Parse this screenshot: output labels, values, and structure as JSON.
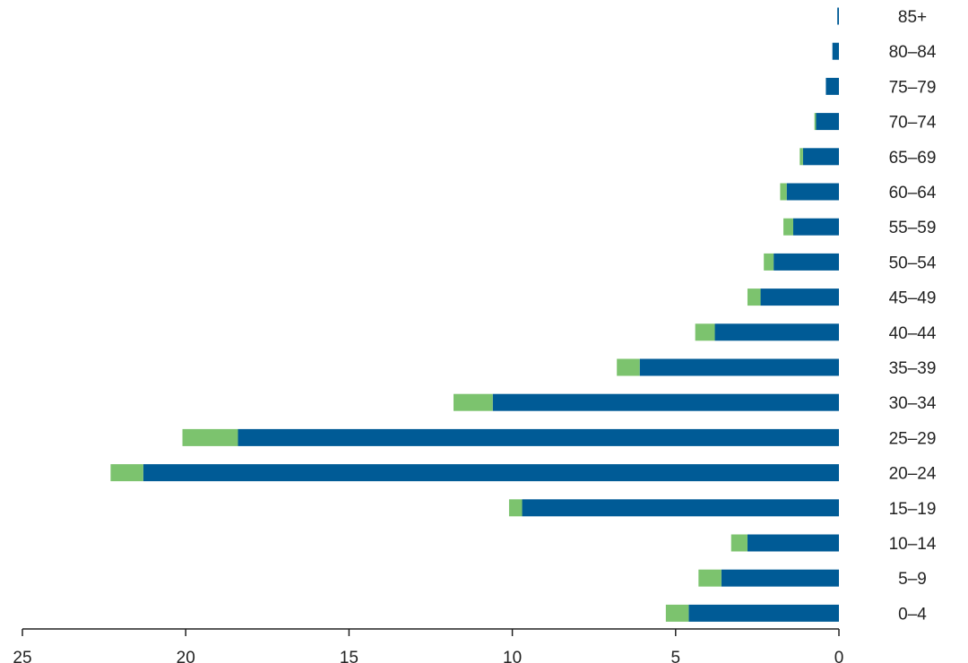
{
  "chart_data": {
    "type": "bar",
    "orientation": "horizontal",
    "stacked": true,
    "x_direction": "reversed",
    "title": "",
    "xlabel": "",
    "ylabel": "",
    "categories": [
      "0–4",
      "5–9",
      "10–14",
      "15–19",
      "20–24",
      "25–29",
      "30–34",
      "35–39",
      "40–44",
      "45–49",
      "50–54",
      "55–59",
      "60–64",
      "65–69",
      "70–74",
      "75–79",
      "80–84",
      "85+"
    ],
    "series": [
      {
        "color": "#005b96",
        "values": [
          4.6,
          3.6,
          2.8,
          9.7,
          21.3,
          18.4,
          10.6,
          6.1,
          3.8,
          2.4,
          2.0,
          1.4,
          1.6,
          1.1,
          0.7,
          0.4,
          0.2,
          0.05
        ]
      },
      {
        "color": "#7cc36e",
        "values": [
          0.7,
          0.7,
          0.5,
          0.4,
          1.0,
          1.7,
          1.2,
          0.7,
          0.6,
          0.4,
          0.3,
          0.3,
          0.2,
          0.1,
          0.05,
          0.0,
          0.0,
          0.0
        ]
      }
    ],
    "xlim": [
      0,
      25
    ],
    "xticks": [
      25,
      20,
      15,
      10,
      5,
      0
    ],
    "grid": false,
    "legend": "none"
  }
}
